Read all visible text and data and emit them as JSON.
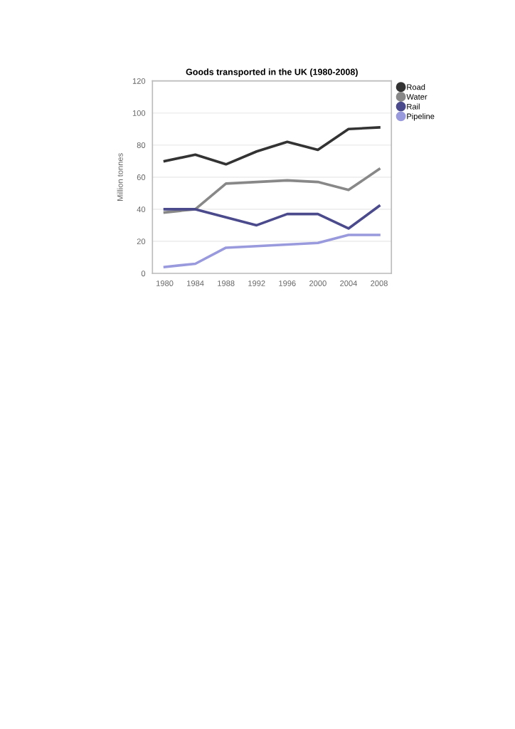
{
  "chart_data": {
    "type": "line",
    "title": "Goods transported in the UK (1980-2008)",
    "ylabel": "Million tonnes",
    "categories": [
      "1980",
      "1984",
      "1988",
      "1992",
      "1996",
      "2000",
      "2004",
      "2008"
    ],
    "series": [
      {
        "name": "Road",
        "color": "#333333",
        "values": [
          70,
          74,
          68,
          76,
          82,
          77,
          90,
          91
        ]
      },
      {
        "name": "Water",
        "color": "#888888",
        "values": [
          38,
          40,
          56,
          57,
          58,
          57,
          52,
          65
        ]
      },
      {
        "name": "Rail",
        "color": "#4a4a8c",
        "values": [
          40,
          40,
          35,
          30,
          37,
          37,
          28,
          42
        ]
      },
      {
        "name": "Pipeline",
        "color": "#9999dd",
        "values": [
          4,
          6,
          16,
          17,
          18,
          19,
          24,
          24
        ]
      }
    ],
    "ylim": [
      0,
      120
    ],
    "yticks": [
      0,
      20,
      40,
      60,
      80,
      100,
      120
    ],
    "grid": "y",
    "legend": "top right",
    "line_style": "solid"
  }
}
